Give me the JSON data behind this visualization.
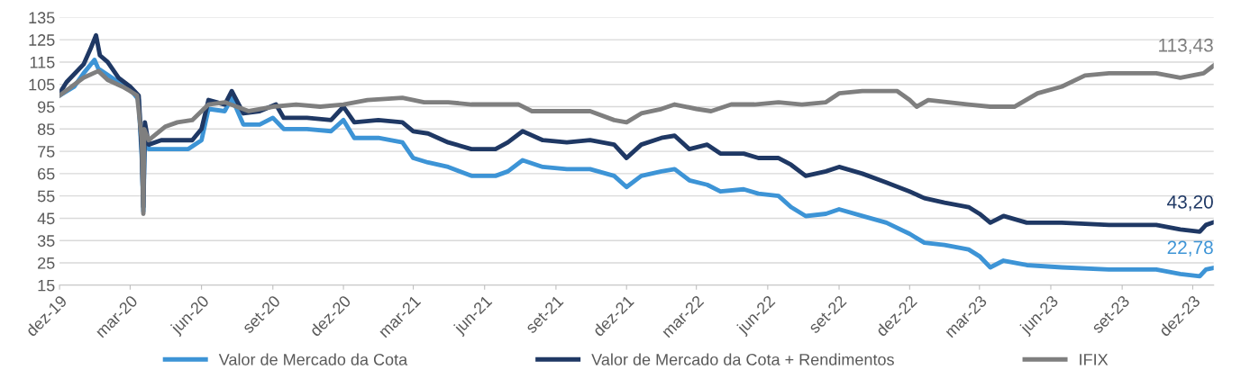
{
  "chart_data": {
    "type": "line",
    "grid": "y",
    "legend": "bottom",
    "xlim": [
      "2019-12-01",
      "2023-12-28"
    ],
    "ylim": [
      15,
      135
    ],
    "yticks": [
      15,
      25,
      35,
      45,
      55,
      65,
      75,
      85,
      95,
      105,
      115,
      125,
      135
    ],
    "xticks": [
      {
        "value": "2019-12-01",
        "label": "dez-19"
      },
      {
        "value": "2020-03-01",
        "label": "mar-20"
      },
      {
        "value": "2020-06-01",
        "label": "jun-20"
      },
      {
        "value": "2020-09-01",
        "label": "set-20"
      },
      {
        "value": "2020-12-01",
        "label": "dez-20"
      },
      {
        "value": "2021-03-01",
        "label": "mar-21"
      },
      {
        "value": "2021-06-01",
        "label": "jun-21"
      },
      {
        "value": "2021-09-01",
        "label": "set-21"
      },
      {
        "value": "2021-12-01",
        "label": "dez-21"
      },
      {
        "value": "2022-03-01",
        "label": "mar-22"
      },
      {
        "value": "2022-06-01",
        "label": "jun-22"
      },
      {
        "value": "2022-09-01",
        "label": "set-22"
      },
      {
        "value": "2022-12-01",
        "label": "dez-22"
      },
      {
        "value": "2023-03-01",
        "label": "mar-23"
      },
      {
        "value": "2023-06-01",
        "label": "jun-23"
      },
      {
        "value": "2023-09-01",
        "label": "set-23"
      },
      {
        "value": "2023-12-01",
        "label": "dez-23"
      }
    ],
    "series": [
      {
        "name": "Valor de Mercado da Cota",
        "color": "#3d94d6",
        "x": [
          "2019-12-01",
          "2019-12-20",
          "2020-01-01",
          "2020-01-15",
          "2020-01-20",
          "2020-02-15",
          "2020-03-01",
          "2020-03-12",
          "2020-03-16",
          "2020-03-18",
          "2020-03-20",
          "2020-03-25",
          "2020-04-15",
          "2020-05-15",
          "2020-06-01",
          "2020-06-10",
          "2020-07-01",
          "2020-07-10",
          "2020-07-25",
          "2020-08-15",
          "2020-09-01",
          "2020-09-15",
          "2020-10-15",
          "2020-11-15",
          "2020-12-01",
          "2020-12-15",
          "2021-01-15",
          "2021-02-15",
          "2021-03-01",
          "2021-03-20",
          "2021-04-15",
          "2021-05-15",
          "2021-06-15",
          "2021-07-01",
          "2021-07-20",
          "2021-08-15",
          "2021-09-15",
          "2021-10-15",
          "2021-11-15",
          "2021-12-01",
          "2021-12-20",
          "2022-01-15",
          "2022-02-01",
          "2022-02-20",
          "2022-03-15",
          "2022-04-01",
          "2022-05-01",
          "2022-05-20",
          "2022-06-15",
          "2022-07-01",
          "2022-07-20",
          "2022-08-15",
          "2022-09-01",
          "2022-10-01",
          "2022-11-01",
          "2022-12-01",
          "2022-12-20",
          "2023-01-15",
          "2023-02-15",
          "2023-03-01",
          "2023-03-15",
          "2023-04-01",
          "2023-05-01",
          "2023-06-15",
          "2023-08-15",
          "2023-10-15",
          "2023-11-15",
          "2023-12-10",
          "2023-12-18",
          "2023-12-28"
        ],
        "values": [
          100,
          104,
          110,
          116,
          112,
          106,
          103,
          98,
          72,
          48,
          84,
          76,
          76,
          76,
          80,
          94,
          93,
          99,
          87,
          87,
          90,
          85,
          85,
          84,
          89,
          81,
          81,
          79,
          72,
          70,
          68,
          64,
          64,
          66,
          71,
          68,
          67,
          67,
          64,
          59,
          64,
          66,
          67,
          62,
          60,
          57,
          58,
          56,
          55,
          50,
          46,
          47,
          49,
          46,
          43,
          38,
          34,
          33,
          31,
          28,
          23,
          26,
          24,
          23,
          22,
          22,
          20,
          19,
          22,
          22.78
        ]
      },
      {
        "name": "Valor de Mercado da Cota + Rendimentos",
        "color": "#1f3864",
        "x": [
          "2019-12-01",
          "2019-12-10",
          "2020-01-01",
          "2020-01-10",
          "2020-01-17",
          "2020-01-22",
          "2020-02-01",
          "2020-02-15",
          "2020-03-01",
          "2020-03-12",
          "2020-03-16",
          "2020-03-18",
          "2020-03-20",
          "2020-03-25",
          "2020-04-10",
          "2020-05-01",
          "2020-05-20",
          "2020-06-01",
          "2020-06-10",
          "2020-07-01",
          "2020-07-10",
          "2020-07-25",
          "2020-08-15",
          "2020-09-05",
          "2020-09-15",
          "2020-10-15",
          "2020-11-15",
          "2020-12-01",
          "2020-12-15",
          "2021-01-15",
          "2021-02-15",
          "2021-03-01",
          "2021-03-20",
          "2021-04-15",
          "2021-05-15",
          "2021-06-15",
          "2021-07-01",
          "2021-07-20",
          "2021-08-15",
          "2021-09-15",
          "2021-10-15",
          "2021-11-15",
          "2021-12-01",
          "2021-12-20",
          "2022-01-15",
          "2022-02-01",
          "2022-02-20",
          "2022-03-15",
          "2022-04-01",
          "2022-05-01",
          "2022-05-20",
          "2022-06-15",
          "2022-07-01",
          "2022-07-20",
          "2022-08-15",
          "2022-09-01",
          "2022-10-01",
          "2022-11-01",
          "2022-12-01",
          "2022-12-20",
          "2023-01-15",
          "2023-02-15",
          "2023-03-01",
          "2023-03-15",
          "2023-04-01",
          "2023-05-01",
          "2023-06-15",
          "2023-08-15",
          "2023-10-15",
          "2023-11-15",
          "2023-12-10",
          "2023-12-18",
          "2023-12-28"
        ],
        "values": [
          101,
          106,
          114,
          121,
          127,
          118,
          115,
          108,
          104,
          100,
          75,
          50,
          88,
          78,
          80,
          80,
          80,
          85,
          98,
          96,
          102,
          92,
          93,
          96,
          90,
          90,
          89,
          95,
          88,
          89,
          88,
          84,
          83,
          79,
          76,
          76,
          79,
          84,
          80,
          79,
          80,
          78,
          72,
          78,
          81,
          82,
          76,
          78,
          74,
          74,
          72,
          72,
          69,
          64,
          66,
          68,
          65,
          61,
          57,
          54,
          52,
          50,
          47,
          43,
          46,
          43,
          43,
          42,
          42,
          40,
          39,
          42,
          43.2
        ]
      },
      {
        "name": "IFIX",
        "color": "#7f7f7f",
        "x": [
          "2019-12-01",
          "2020-01-01",
          "2020-01-20",
          "2020-02-01",
          "2020-02-20",
          "2020-03-01",
          "2020-03-10",
          "2020-03-16",
          "2020-03-18",
          "2020-03-19",
          "2020-03-25",
          "2020-04-15",
          "2020-05-01",
          "2020-05-20",
          "2020-06-10",
          "2020-07-01",
          "2020-08-01",
          "2020-09-01",
          "2020-10-01",
          "2020-11-01",
          "2020-12-01",
          "2021-01-01",
          "2021-02-15",
          "2021-03-15",
          "2021-04-15",
          "2021-05-15",
          "2021-06-15",
          "2021-07-15",
          "2021-08-01",
          "2021-09-01",
          "2021-10-15",
          "2021-11-15",
          "2021-12-01",
          "2021-12-20",
          "2022-01-15",
          "2022-02-01",
          "2022-03-01",
          "2022-03-20",
          "2022-04-15",
          "2022-05-15",
          "2022-06-15",
          "2022-07-15",
          "2022-08-15",
          "2022-09-01",
          "2022-10-01",
          "2022-11-15",
          "2022-12-01",
          "2022-12-10",
          "2022-12-25",
          "2023-01-20",
          "2023-02-15",
          "2023-03-15",
          "2023-04-15",
          "2023-05-15",
          "2023-06-15",
          "2023-07-15",
          "2023-08-15",
          "2023-09-15",
          "2023-10-15",
          "2023-11-15",
          "2023-12-15",
          "2023-12-28"
        ],
        "values": [
          100,
          108,
          111,
          107,
          104,
          102,
          100,
          80,
          47,
          85,
          80,
          86,
          88,
          89,
          96,
          97,
          93,
          95,
          96,
          95,
          96,
          98,
          99,
          97,
          97,
          96,
          96,
          96,
          93,
          93,
          93,
          89,
          88,
          92,
          94,
          96,
          94,
          93,
          96,
          96,
          97,
          96,
          97,
          101,
          102,
          102,
          98,
          95,
          98,
          97,
          96,
          95,
          95,
          101,
          104,
          109,
          110,
          110,
          110,
          108,
          110,
          113.43
        ]
      }
    ],
    "annotations": [
      {
        "text": "22,78",
        "x": "2023-12-28",
        "y": 22.78
      },
      {
        "text": "43,20",
        "x": "2023-12-28",
        "y": 43.2
      },
      {
        "text": "113,43",
        "x": "2023-12-28",
        "y": 113.43
      }
    ]
  }
}
